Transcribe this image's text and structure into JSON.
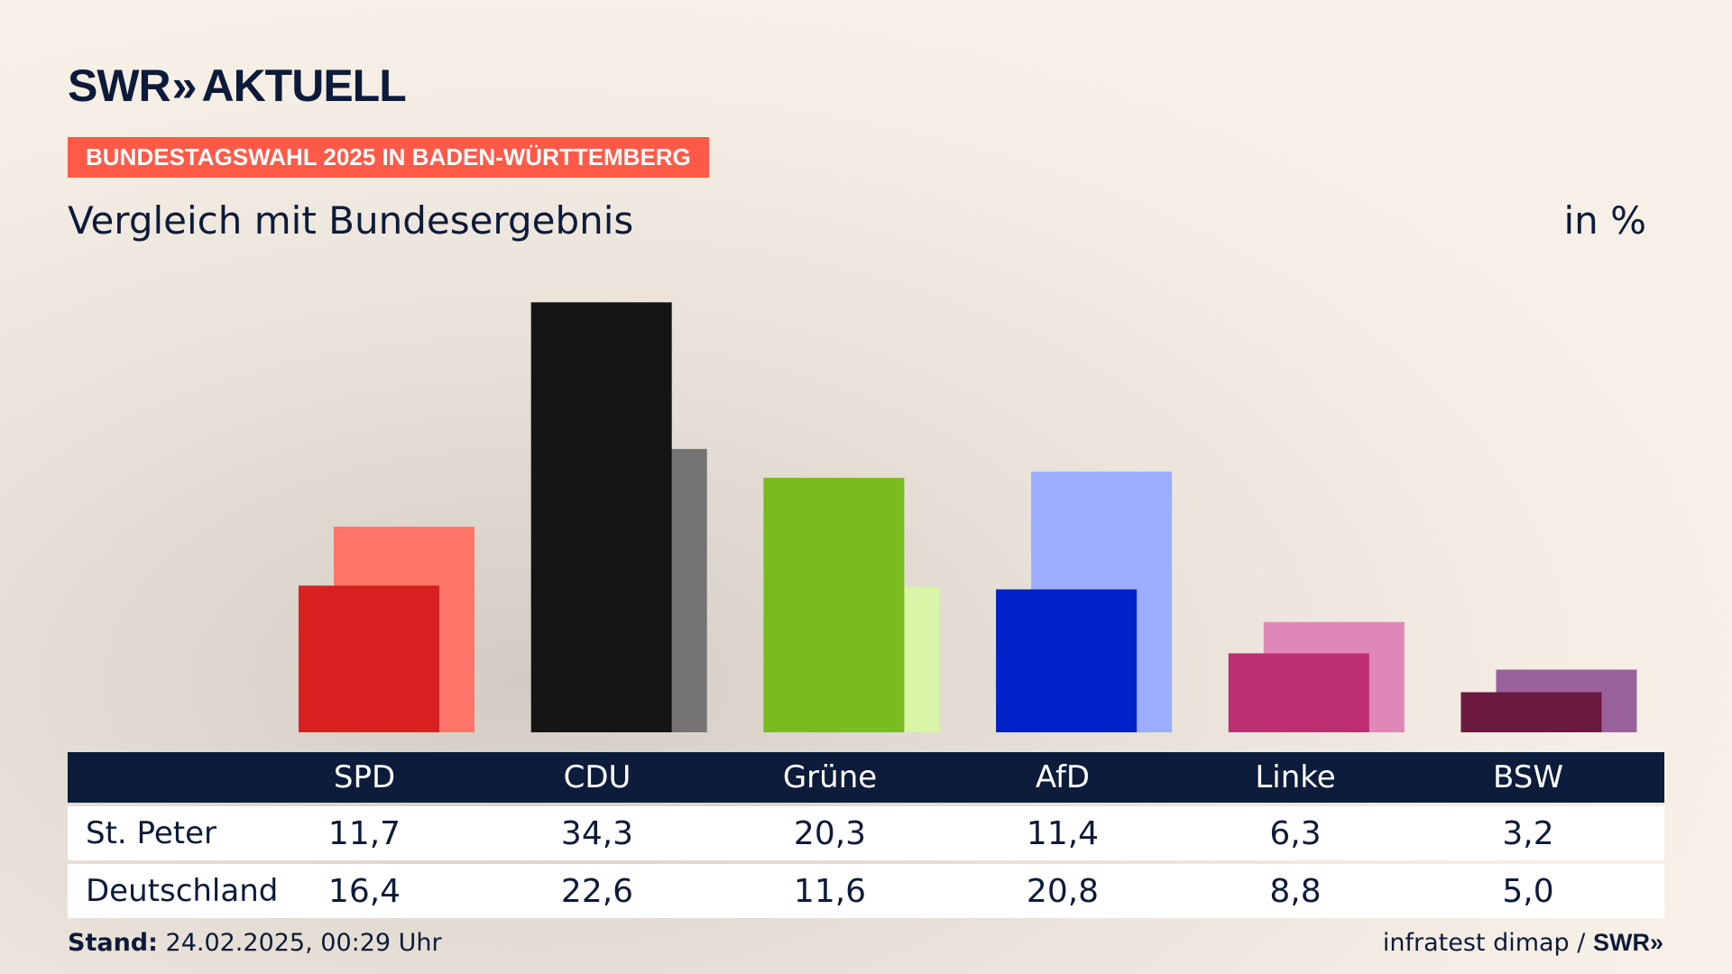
{
  "header": {
    "logo_text": "SWR",
    "logo_chevron": "»",
    "logo_suffix": "AKTUELL",
    "banner": "BUNDESTAGSWAHL 2025 IN BADEN-WÜRTTEMBERG",
    "subtitle": "Vergleich mit Bundesergebnis",
    "unit": "in %"
  },
  "table": {
    "rows": [
      {
        "label": "St. Peter"
      },
      {
        "label": "Deutschland"
      }
    ]
  },
  "chart_data": {
    "type": "bar",
    "title": "Vergleich mit Bundesergebnis",
    "ylabel": "in %",
    "ylim": [
      0,
      36
    ],
    "categories": [
      "SPD",
      "CDU",
      "Grüne",
      "AfD",
      "Linke",
      "BSW"
    ],
    "series": [
      {
        "name": "St. Peter",
        "values": [
          "11,7",
          "34,3",
          "20,3",
          "11,4",
          "6,3",
          "3,2"
        ],
        "colors": [
          "#d7201f",
          "#151515",
          "#78bc1e",
          "#0020c8",
          "#bd2e72",
          "#6c1940"
        ]
      },
      {
        "name": "Deutschland",
        "values": [
          "16,4",
          "22,6",
          "11,6",
          "20,8",
          "8,8",
          "5,0"
        ],
        "colors": [
          "#ff7468",
          "#747372",
          "#d9f5a7",
          "#9cacff",
          "#df88b7",
          "#9a629d"
        ]
      }
    ]
  },
  "footer": {
    "stand_label": "Stand:",
    "stand_value": "24.02.2025, 00:29 Uhr",
    "source_text": "infratest dimap /",
    "source_brand": "SWR»"
  }
}
